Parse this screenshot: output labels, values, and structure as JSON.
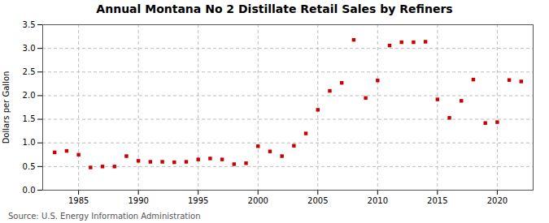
{
  "chart_data": {
    "type": "scatter",
    "title": "Annual Montana No 2 Distillate Retail Sales by Refiners",
    "ylabel": "Dollars per Gallon",
    "source": "Source: U.S. Energy Information Administration",
    "color": "#cc0000",
    "marker": "square",
    "grid": true,
    "xlim": [
      1982,
      2023
    ],
    "ylim": [
      0.0,
      3.5
    ],
    "xticks": [
      1985,
      1990,
      1995,
      2000,
      2005,
      2010,
      2015,
      2020
    ],
    "yticks": [
      {
        "value": 0.0,
        "label": "0.0"
      },
      0.5,
      {
        "value": 1.0,
        "label": "1.0"
      },
      1.5,
      {
        "value": 2.0,
        "label": "2.0"
      },
      2.5,
      {
        "value": 3.0,
        "label": "3.0"
      },
      3.5
    ],
    "x": [
      1983,
      1984,
      1985,
      1986,
      1987,
      1988,
      1989,
      1990,
      1991,
      1992,
      1993,
      1994,
      1995,
      1996,
      1997,
      1998,
      1999,
      2000,
      2001,
      2002,
      2003,
      2004,
      2005,
      2006,
      2007,
      2008,
      2009,
      2010,
      2011,
      2012,
      2013,
      2014,
      2015,
      2016,
      2017,
      2018,
      2019,
      2020,
      2021,
      2022
    ],
    "values": [
      0.8,
      0.83,
      0.75,
      0.48,
      0.5,
      0.5,
      0.72,
      0.62,
      0.6,
      0.6,
      0.59,
      0.6,
      0.65,
      0.67,
      0.65,
      0.55,
      0.57,
      0.93,
      0.82,
      0.72,
      0.94,
      1.2,
      1.7,
      2.1,
      2.27,
      3.18,
      1.95,
      2.32,
      3.06,
      3.13,
      3.13,
      3.14,
      1.92,
      1.53,
      1.89,
      2.34,
      1.42,
      1.44,
      2.33,
      2.3
    ]
  }
}
